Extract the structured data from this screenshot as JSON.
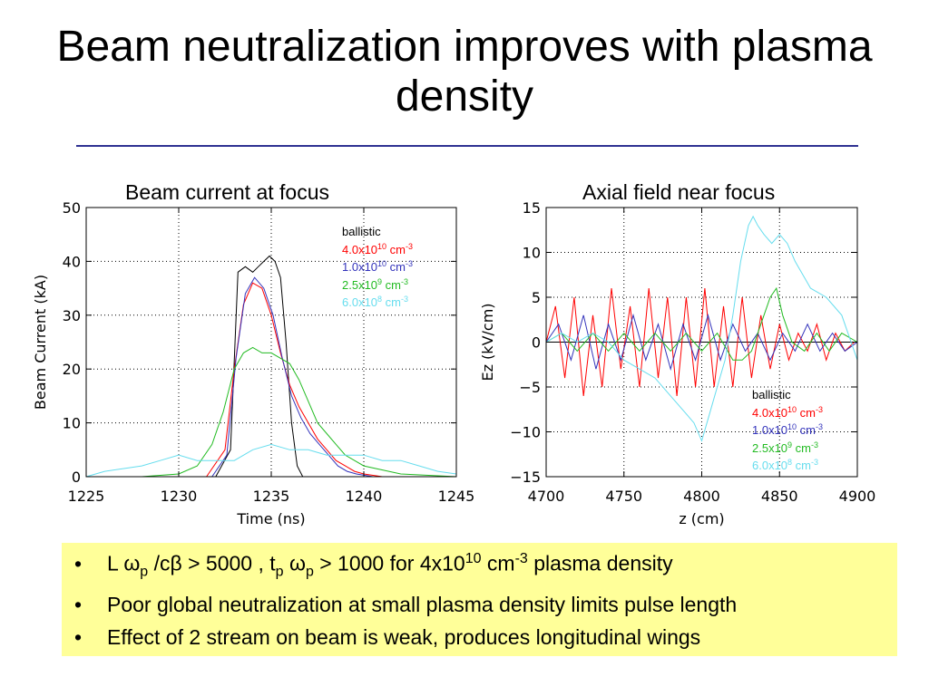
{
  "slide": {
    "title": "Beam neutralization improves with plasma density",
    "bullets": [
      {
        "marker": "•",
        "parts": [
          "L ",
          {
            "sym": "ω"
          },
          {
            "sub": "p"
          },
          " /c",
          {
            "sym": "β"
          },
          " > 5000 , t",
          {
            "sub": "p"
          },
          " ",
          {
            "sym": "ω"
          },
          {
            "sub": "p"
          },
          " > 1000 for 4x10",
          {
            "sup": "10"
          },
          " cm",
          {
            "sup": "-3"
          },
          " plasma density"
        ]
      },
      {
        "marker": "•",
        "parts": [
          "Poor global neutralization at small plasma density limits pulse length"
        ]
      },
      {
        "marker": "•",
        "parts": [
          "Effect of 2 stream on beam is weak, produces longitudinal wings"
        ]
      }
    ]
  },
  "legend_entries": [
    {
      "name": "ballistic",
      "color": "#000000",
      "parts": [
        "ballistic"
      ]
    },
    {
      "name": "4.0x10^10 cm^-3",
      "color": "#ff0000",
      "parts": [
        "4.0x10",
        {
          "sup": "10"
        },
        " cm",
        {
          "sup": "-3"
        }
      ]
    },
    {
      "name": "1.0x10^10 cm^-3",
      "color": "#3333bb",
      "parts": [
        "1.0x10",
        {
          "sup": "10"
        },
        " cm",
        {
          "sup": "-3"
        }
      ]
    },
    {
      "name": "2.5x10^9 cm^-3",
      "color": "#22bb22",
      "parts": [
        "2.5x10",
        {
          "sup": "9"
        },
        " cm",
        {
          "sup": "-3"
        }
      ]
    },
    {
      "name": "6.0x10^8 cm^-3",
      "color": "#66ddee",
      "parts": [
        "6.0x10",
        {
          "sup": "8"
        },
        " cm",
        {
          "sup": "-3"
        }
      ]
    }
  ],
  "chart_data": [
    {
      "type": "line",
      "title": "Beam current at focus",
      "xlabel": "Time (ns)",
      "ylabel": "Beam Current (kA)",
      "xlim": [
        1225,
        1245
      ],
      "ylim": [
        0,
        50
      ],
      "xticks": [
        1225,
        1230,
        1235,
        1240,
        1245
      ],
      "yticks": [
        0,
        10,
        20,
        30,
        40,
        50
      ],
      "grid": true,
      "legend_position": "top-right",
      "series": [
        {
          "name": "ballistic",
          "color": "#000000",
          "x": [
            1225,
            1232,
            1232.8,
            1233.2,
            1233.6,
            1234.0,
            1234.3,
            1234.6,
            1234.9,
            1235.2,
            1235.5,
            1235.8,
            1236.1,
            1236.4,
            1236.7,
            1237,
            1245
          ],
          "y": [
            0,
            0,
            5,
            38,
            39,
            38,
            39,
            40,
            41,
            40,
            37,
            25,
            10,
            2,
            0,
            0,
            0
          ]
        },
        {
          "name": "4.0x10^10 cm^-3",
          "color": "#ff0000",
          "x": [
            1225,
            1231.5,
            1232.5,
            1233,
            1233.5,
            1234,
            1234.5,
            1235,
            1235.5,
            1236,
            1236.5,
            1237,
            1237.5,
            1238,
            1238.5,
            1239,
            1239.5,
            1240,
            1241,
            1245
          ],
          "y": [
            0,
            0,
            5,
            20,
            32,
            36,
            35,
            30,
            23,
            17,
            13,
            10,
            7,
            5,
            3,
            2,
            1,
            0.5,
            0,
            0
          ]
        },
        {
          "name": "1.0x10^10 cm^-3",
          "color": "#3333bb",
          "x": [
            1225,
            1231.8,
            1232.6,
            1233.1,
            1233.6,
            1234.1,
            1234.6,
            1235.1,
            1235.6,
            1236.1,
            1236.6,
            1237.1,
            1237.6,
            1238.1,
            1238.6,
            1239.1,
            1239.6,
            1240.5,
            1245
          ],
          "y": [
            0,
            0,
            4,
            22,
            34,
            37,
            35,
            30,
            22,
            15,
            11,
            8,
            6,
            4,
            2,
            1,
            0.5,
            0,
            0
          ]
        },
        {
          "name": "2.5x10^9 cm^-3",
          "color": "#22bb22",
          "x": [
            1225,
            1228,
            1230,
            1231,
            1231.8,
            1232.4,
            1233,
            1233.5,
            1234,
            1234.5,
            1235,
            1235.5,
            1236,
            1236.5,
            1237,
            1237.5,
            1238,
            1238.5,
            1239,
            1240,
            1242,
            1245
          ],
          "y": [
            0,
            0,
            0.5,
            2,
            6,
            12,
            20,
            23,
            24,
            23,
            23,
            22,
            21,
            18,
            14,
            10,
            8,
            6,
            4,
            2,
            0.5,
            0
          ]
        },
        {
          "name": "6.0x10^8 cm^-3",
          "color": "#66ddee",
          "x": [
            1225,
            1226,
            1227,
            1228,
            1229,
            1230,
            1231,
            1232,
            1233,
            1234,
            1235,
            1236,
            1237,
            1238,
            1239,
            1240,
            1241,
            1242,
            1243,
            1244,
            1245
          ],
          "y": [
            0,
            1,
            1.5,
            2,
            3,
            4,
            3,
            3,
            3,
            5,
            6,
            5,
            5,
            4,
            4,
            4,
            3,
            3,
            2,
            1,
            0.5
          ]
        }
      ]
    },
    {
      "type": "line",
      "title": "Axial field near focus",
      "xlabel": "z (cm)",
      "ylabel": "Ez (kV/cm)",
      "xlim": [
        4700,
        4900
      ],
      "ylim": [
        -15,
        15
      ],
      "xticks": [
        4700,
        4750,
        4800,
        4850,
        4900
      ],
      "yticks": [
        -15,
        -10,
        -5,
        0,
        5,
        10,
        15
      ],
      "grid": true,
      "legend_position": "bottom-right",
      "series": [
        {
          "name": "ballistic",
          "color": "#000000",
          "x": [
            4700,
            4900
          ],
          "y": [
            0,
            0
          ]
        },
        {
          "name": "4.0x10^10 cm^-3",
          "color": "#ff0000",
          "x": [
            4700,
            4706,
            4712,
            4718,
            4724,
            4730,
            4736,
            4742,
            4748,
            4754,
            4760,
            4766,
            4772,
            4778,
            4784,
            4790,
            4796,
            4802,
            4808,
            4814,
            4820,
            4826,
            4832,
            4838,
            4844,
            4850,
            4856,
            4862,
            4868,
            4874,
            4880,
            4886,
            4892,
            4898
          ],
          "y": [
            0,
            4,
            -4,
            5,
            -6,
            3,
            -5,
            6,
            -3,
            4,
            -5,
            6,
            -4,
            5,
            -6,
            5,
            -5,
            6,
            -5,
            4,
            -5,
            5,
            -4,
            3,
            -3,
            2,
            -2,
            1,
            -1,
            2,
            -2,
            1,
            -1,
            0
          ]
        },
        {
          "name": "1.0x10^10 cm^-3",
          "color": "#3333bb",
          "x": [
            4700,
            4708,
            4716,
            4724,
            4732,
            4740,
            4748,
            4756,
            4764,
            4772,
            4780,
            4788,
            4796,
            4804,
            4812,
            4820,
            4828,
            4836,
            4844,
            4852,
            4860,
            4868,
            4876,
            4884,
            4892,
            4900
          ],
          "y": [
            0,
            2,
            -2,
            3,
            -3,
            2,
            -2,
            3,
            -2,
            2,
            -3,
            2,
            -2,
            3,
            -2,
            2,
            -1,
            1,
            -2,
            1,
            -1,
            2,
            -1,
            1,
            -1,
            0
          ]
        },
        {
          "name": "2.5x10^9 cm^-3",
          "color": "#22bb22",
          "x": [
            4700,
            4710,
            4720,
            4730,
            4740,
            4750,
            4760,
            4770,
            4780,
            4790,
            4800,
            4810,
            4820,
            4826,
            4832,
            4838,
            4844,
            4848,
            4852,
            4858,
            4866,
            4874,
            4882,
            4890,
            4900
          ],
          "y": [
            0,
            1,
            -1,
            1,
            -1,
            1,
            -1,
            1,
            -1,
            1,
            -1,
            1,
            -2,
            -2,
            -1,
            2,
            5,
            6,
            3,
            0,
            -1,
            1,
            -1,
            1,
            0
          ]
        },
        {
          "name": "6.0x10^8 cm^-3",
          "color": "#66ddee",
          "x": [
            4700,
            4710,
            4720,
            4730,
            4740,
            4750,
            4760,
            4770,
            4780,
            4790,
            4795,
            4800,
            4805,
            4810,
            4815,
            4820,
            4825,
            4830,
            4833,
            4836,
            4840,
            4845,
            4850,
            4855,
            4860,
            4870,
            4880,
            4890,
            4900
          ],
          "y": [
            0,
            1,
            0,
            1,
            0,
            -2,
            -3,
            -4,
            -6,
            -8,
            -9,
            -11,
            -8,
            -5,
            -2,
            3,
            9,
            13,
            14,
            13,
            12,
            11,
            12,
            11,
            9,
            6,
            5,
            3,
            -2
          ]
        }
      ]
    }
  ]
}
